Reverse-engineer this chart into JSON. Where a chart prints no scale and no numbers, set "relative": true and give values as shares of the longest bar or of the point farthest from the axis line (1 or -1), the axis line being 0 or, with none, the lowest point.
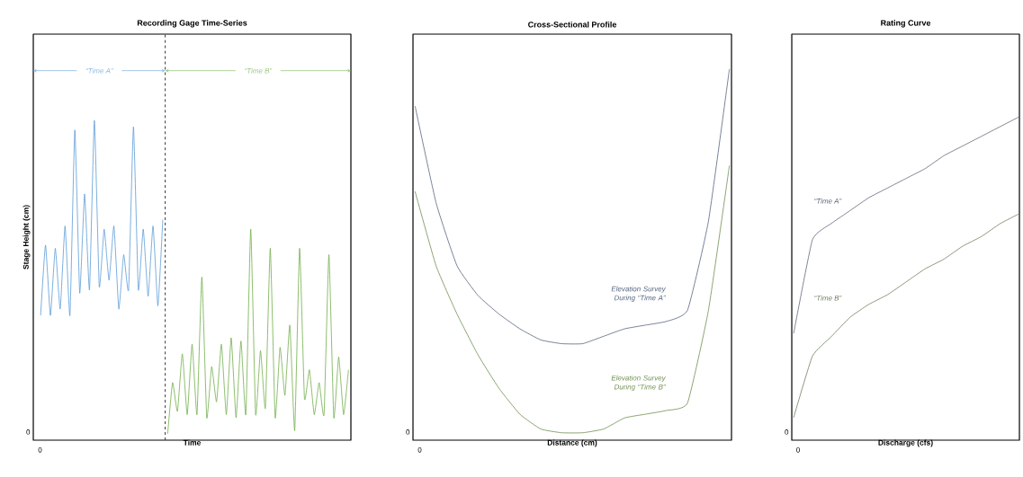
{
  "chart_data": [
    {
      "type": "line",
      "title": "Recording Gage Time-Series",
      "xlabel": "Time",
      "ylabel": "Stage Height (cm)",
      "relative": true,
      "categories": [
        null,
        null,
        null,
        null,
        null,
        null,
        null,
        null,
        null,
        null,
        null,
        null,
        null,
        null,
        null,
        null,
        null,
        null,
        null,
        null,
        null,
        null,
        null,
        null,
        null,
        null,
        null,
        null,
        null,
        null,
        null,
        null,
        null,
        null,
        null,
        null,
        null,
        null,
        null,
        null,
        null,
        null,
        null,
        null,
        null,
        null,
        null,
        null,
        null,
        null,
        null,
        null,
        null,
        null,
        null,
        null,
        null,
        null,
        null,
        null,
        null,
        null,
        null,
        null
      ],
      "series": [
        {
          "color": "#5b9bd5",
          "values": [
            0.39,
            0.61,
            0.39,
            0.6,
            0.41,
            0.67,
            0.39,
            0.97,
            0.46,
            0.77,
            0.47,
            1.0,
            0.48,
            0.66,
            0.5,
            0.67,
            0.41,
            0.58,
            0.47,
            0.98,
            0.47,
            0.66,
            0.45,
            0.67,
            0.42,
            0.69,
            null,
            null,
            null,
            null,
            null,
            null,
            null,
            null,
            null,
            null,
            null,
            null,
            null,
            null,
            null,
            null,
            null,
            null,
            null,
            null,
            null,
            null,
            null,
            null,
            null,
            null,
            null,
            null,
            null,
            null,
            null,
            null,
            null,
            null,
            null,
            null,
            null,
            null
          ]
        },
        {
          "color": "#70ad47",
          "values": [
            null,
            null,
            null,
            null,
            null,
            null,
            null,
            null,
            null,
            null,
            null,
            null,
            null,
            null,
            null,
            null,
            null,
            null,
            null,
            null,
            null,
            null,
            null,
            null,
            null,
            null,
            0.02,
            0.18,
            0.09,
            0.27,
            0.08,
            0.3,
            0.08,
            0.51,
            0.07,
            0.23,
            0.12,
            0.3,
            0.08,
            0.32,
            0.07,
            0.31,
            0.08,
            0.66,
            0.08,
            0.28,
            0.1,
            0.6,
            0.07,
            0.29,
            0.14,
            0.36,
            0.03,
            0.6,
            0.13,
            0.22,
            0.08,
            0.18,
            0.08,
            0.58,
            0.07,
            0.26,
            0.08,
            0.22
          ]
        }
      ],
      "annotations": [
        "0",
        "0",
        "“Time A”",
        "“Time B”"
      ]
    },
    {
      "type": "line",
      "title": "Cross-Sectional Profile",
      "xlabel": "Distance (cm)",
      "relative": true,
      "categories": [
        null,
        null,
        null,
        null,
        null,
        null,
        null,
        null,
        null,
        null,
        null,
        null,
        null,
        null,
        null,
        null
      ],
      "series": [
        {
          "name": "Elevation Survey During “Time A”",
          "color": "#55657f",
          "values": [
            0.9,
            0.64,
            0.47,
            0.39,
            0.34,
            0.3,
            0.27,
            0.26,
            0.26,
            0.28,
            0.3,
            0.31,
            0.32,
            0.35,
            0.59,
            1.0
          ]
        },
        {
          "name": "Elevation Survey During “Time B”",
          "color": "#6f8f50",
          "values": [
            0.67,
            0.47,
            0.34,
            0.23,
            0.14,
            0.07,
            0.03,
            0.02,
            0.02,
            0.03,
            0.06,
            0.07,
            0.08,
            0.1,
            0.35,
            0.74
          ]
        }
      ],
      "annotations": [
        "0",
        "0"
      ]
    },
    {
      "type": "line",
      "title": "Rating Curve",
      "xlabel": "Discharge (cfs)",
      "relative": true,
      "categories": [
        null,
        null,
        null,
        null,
        null,
        null,
        null,
        null,
        null,
        null,
        null,
        null,
        null
      ],
      "series": [
        {
          "name": "“Time A”",
          "color": "#5e6878",
          "values": [
            0.33,
            0.62,
            0.67,
            0.71,
            0.75,
            0.78,
            0.81,
            0.84,
            0.88,
            0.91,
            0.94,
            0.97,
            1.0
          ]
        },
        {
          "name": "“Time B”",
          "color": "#6f8060",
          "values": [
            0.07,
            0.26,
            0.32,
            0.38,
            0.42,
            0.45,
            0.49,
            0.53,
            0.56,
            0.6,
            0.63,
            0.67,
            0.7
          ]
        }
      ],
      "annotations": [
        "0",
        "0"
      ]
    }
  ]
}
